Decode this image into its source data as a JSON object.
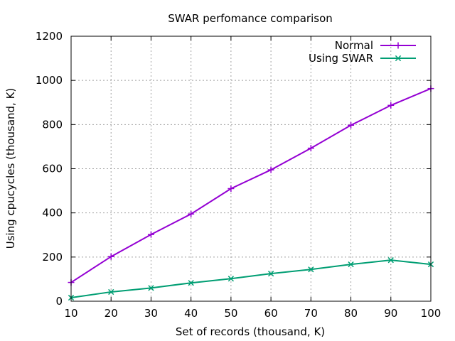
{
  "chart_data": {
    "type": "line",
    "title": "SWAR perfomance comparison",
    "xlabel": "Set of records (thousand, K)",
    "ylabel": "Using cpucycles (thousand, K)",
    "xlim": [
      10,
      100
    ],
    "ylim": [
      0,
      1200
    ],
    "xticks": [
      10,
      20,
      30,
      40,
      50,
      60,
      70,
      80,
      90,
      100
    ],
    "yticks": [
      0,
      200,
      400,
      600,
      800,
      1000,
      1200
    ],
    "grid": true,
    "legend_position": "top-right",
    "x": [
      10,
      20,
      30,
      40,
      50,
      60,
      70,
      80,
      90,
      100
    ],
    "series": [
      {
        "name": "Normal",
        "color": "#9400d3",
        "marker": "plus",
        "values": [
          85,
          202,
          302,
          395,
          510,
          595,
          693,
          797,
          887,
          963
        ]
      },
      {
        "name": "Using SWAR",
        "color": "#009e73",
        "marker": "cross",
        "values": [
          16,
          42,
          60,
          83,
          102,
          125,
          144,
          167,
          186,
          167
        ]
      }
    ]
  }
}
